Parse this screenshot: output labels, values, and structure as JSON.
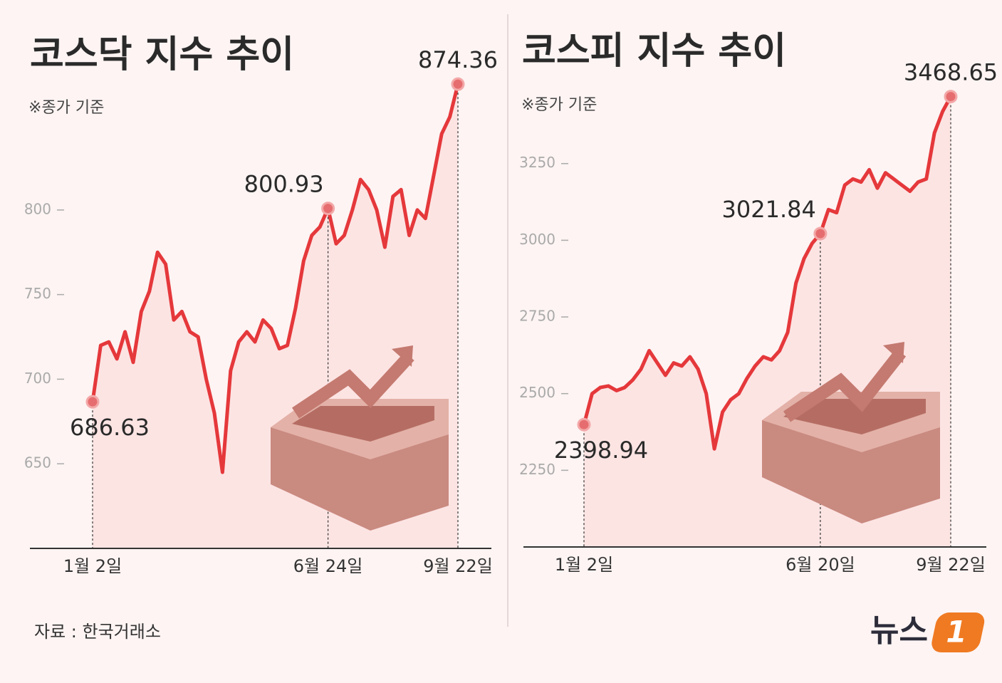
{
  "chart_data": [
    {
      "type": "line",
      "title": "코스닥 지수 추이",
      "note": "※종가 기준",
      "color": "#e5383b",
      "categories": [
        "1월 2일",
        null,
        null,
        null,
        null,
        null,
        null,
        null,
        null,
        null,
        null,
        null,
        null,
        null,
        null,
        null,
        null,
        null,
        null,
        null,
        null,
        null,
        null,
        null,
        null,
        null,
        null,
        null,
        null,
        "6월 24일",
        null,
        null,
        null,
        null,
        null,
        null,
        null,
        null,
        null,
        null,
        null,
        null,
        null,
        null,
        null,
        "9월 22일"
      ],
      "values": [
        686.63,
        720,
        722,
        712,
        728,
        710,
        740,
        752,
        775,
        768,
        735,
        740,
        728,
        725,
        700,
        680,
        645,
        705,
        722,
        728,
        722,
        735,
        730,
        718,
        720,
        742,
        770,
        785,
        790,
        800.93,
        780,
        785,
        800,
        818,
        812,
        800,
        778,
        808,
        812,
        785,
        800,
        795,
        820,
        845,
        855,
        874.36
      ],
      "ylim": [
        600,
        890
      ],
      "yticks": [
        650,
        700,
        750,
        800
      ]
    },
    {
      "type": "line",
      "title": "코스피 지수 추이",
      "note": "※종가 기준",
      "color": "#e5383b",
      "categories": [
        "1월 2일",
        null,
        null,
        null,
        null,
        null,
        null,
        null,
        null,
        null,
        null,
        null,
        null,
        null,
        null,
        null,
        null,
        null,
        null,
        null,
        null,
        null,
        null,
        null,
        null,
        null,
        null,
        null,
        null,
        "6월 20일",
        null,
        null,
        null,
        null,
        null,
        null,
        null,
        null,
        null,
        null,
        null,
        null,
        null,
        null,
        null,
        "9월 22일"
      ],
      "values": [
        2398.94,
        2500,
        2520,
        2525,
        2510,
        2520,
        2545,
        2580,
        2640,
        2600,
        2560,
        2600,
        2590,
        2620,
        2580,
        2500,
        2320,
        2440,
        2480,
        2500,
        2550,
        2590,
        2620,
        2610,
        2640,
        2700,
        2860,
        2940,
        2990,
        3021.84,
        3100,
        3090,
        3180,
        3200,
        3190,
        3230,
        3170,
        3220,
        3200,
        3180,
        3160,
        3190,
        3200,
        3350,
        3420,
        3468.65
      ],
      "ylim": [
        2000,
        3600
      ],
      "yticks": [
        2250,
        2500,
        2750,
        3000,
        3250
      ]
    }
  ],
  "source": "자료 : 한국거래소",
  "logo": {
    "text": "뉴스",
    "mark": "1"
  }
}
